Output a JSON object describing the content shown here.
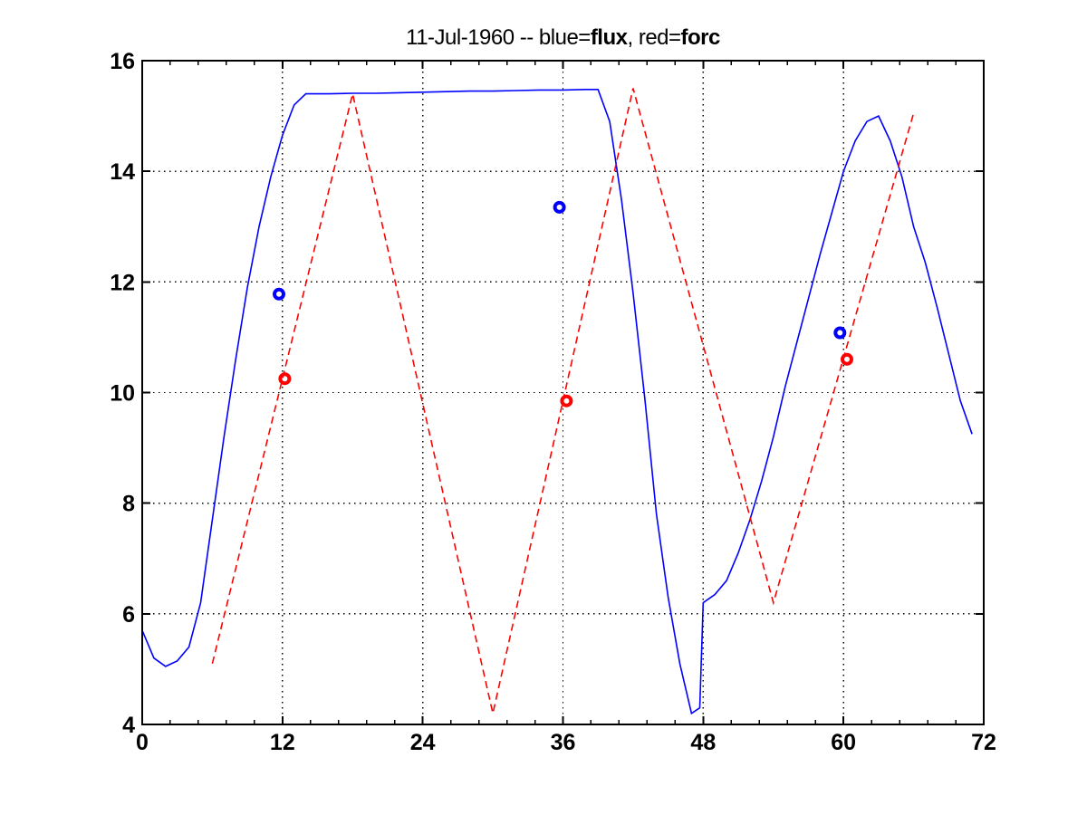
{
  "title": {
    "prefix": "11-Jul-1960 -- blue=",
    "flux": "flux",
    "mid": ", red=",
    "forc": "forc",
    "full": "11-Jul-1960 -- blue=flux, red=forc"
  },
  "colors": {
    "flux_blue": "#0000FF",
    "forc_red": "#FF0000",
    "axis": "#000000",
    "grid": "#000000",
    "background": "#FFFFFF"
  },
  "chart_data": {
    "type": "line",
    "title": "11-Jul-1960 -- blue=flux, red=forc",
    "xlabel": "",
    "ylabel": "",
    "xlim": [
      0,
      72
    ],
    "ylim": [
      4,
      16
    ],
    "xticks": [
      0,
      12,
      24,
      36,
      48,
      60,
      72
    ],
    "yticks": [
      4,
      6,
      8,
      10,
      12,
      14,
      16
    ],
    "x_minor_tick_step": 2.4,
    "grid": "dotted",
    "legend_position": "none (encoded in title)",
    "series": [
      {
        "name": "flux",
        "color": "#0000FF",
        "line_style": "solid",
        "points": [
          [
            0,
            5.7
          ],
          [
            1,
            5.2
          ],
          [
            2,
            5.05
          ],
          [
            3,
            5.15
          ],
          [
            4,
            5.4
          ],
          [
            5,
            6.2
          ],
          [
            6,
            7.7
          ],
          [
            7,
            9.2
          ],
          [
            8,
            10.6
          ],
          [
            9,
            11.9
          ],
          [
            10,
            13.0
          ],
          [
            11,
            13.9
          ],
          [
            12,
            14.65
          ],
          [
            13,
            15.2
          ],
          [
            14,
            15.4
          ],
          [
            16,
            15.4
          ],
          [
            18,
            15.41
          ],
          [
            20,
            15.41
          ],
          [
            22,
            15.42
          ],
          [
            24,
            15.43
          ],
          [
            26,
            15.44
          ],
          [
            28,
            15.45
          ],
          [
            30,
            15.45
          ],
          [
            32,
            15.46
          ],
          [
            34,
            15.47
          ],
          [
            36,
            15.47
          ],
          [
            38,
            15.48
          ],
          [
            39,
            15.48
          ],
          [
            40,
            14.9
          ],
          [
            41,
            13.5
          ],
          [
            42,
            11.8
          ],
          [
            43,
            9.9
          ],
          [
            44,
            7.8
          ],
          [
            45,
            6.3
          ],
          [
            46,
            5.1
          ],
          [
            47,
            4.2
          ],
          [
            47.7,
            4.3
          ],
          [
            48,
            6.2
          ],
          [
            49,
            6.35
          ],
          [
            50,
            6.6
          ],
          [
            51,
            7.1
          ],
          [
            52,
            7.7
          ],
          [
            53,
            8.4
          ],
          [
            54,
            9.2
          ],
          [
            55,
            10.1
          ],
          [
            56,
            10.9
          ],
          [
            57,
            11.7
          ],
          [
            58,
            12.5
          ],
          [
            59,
            13.25
          ],
          [
            60,
            14.0
          ],
          [
            61,
            14.55
          ],
          [
            62,
            14.9
          ],
          [
            63,
            15.0
          ],
          [
            64,
            14.55
          ],
          [
            65,
            13.9
          ],
          [
            66,
            13.0
          ],
          [
            67,
            12.35
          ],
          [
            68,
            11.55
          ],
          [
            69,
            10.7
          ],
          [
            70,
            9.85
          ],
          [
            71,
            9.25
          ]
        ]
      },
      {
        "name": "forc",
        "color": "#FF0000",
        "line_style": "dashed",
        "points": [
          [
            6,
            5.1
          ],
          [
            18,
            15.4
          ],
          [
            30,
            4.2
          ],
          [
            42,
            15.5
          ],
          [
            54,
            6.2
          ],
          [
            66,
            15.05
          ]
        ]
      }
    ],
    "markers": [
      {
        "name": "flux-observations",
        "color": "#0000FF",
        "shape": "open-circle",
        "points": [
          [
            11.7,
            11.78
          ],
          [
            35.7,
            13.35
          ],
          [
            59.7,
            11.08
          ]
        ]
      },
      {
        "name": "forc-observations",
        "color": "#FF0000",
        "shape": "open-circle",
        "points": [
          [
            12.2,
            10.25
          ],
          [
            36.3,
            9.85
          ],
          [
            60.3,
            10.6
          ]
        ]
      }
    ]
  }
}
